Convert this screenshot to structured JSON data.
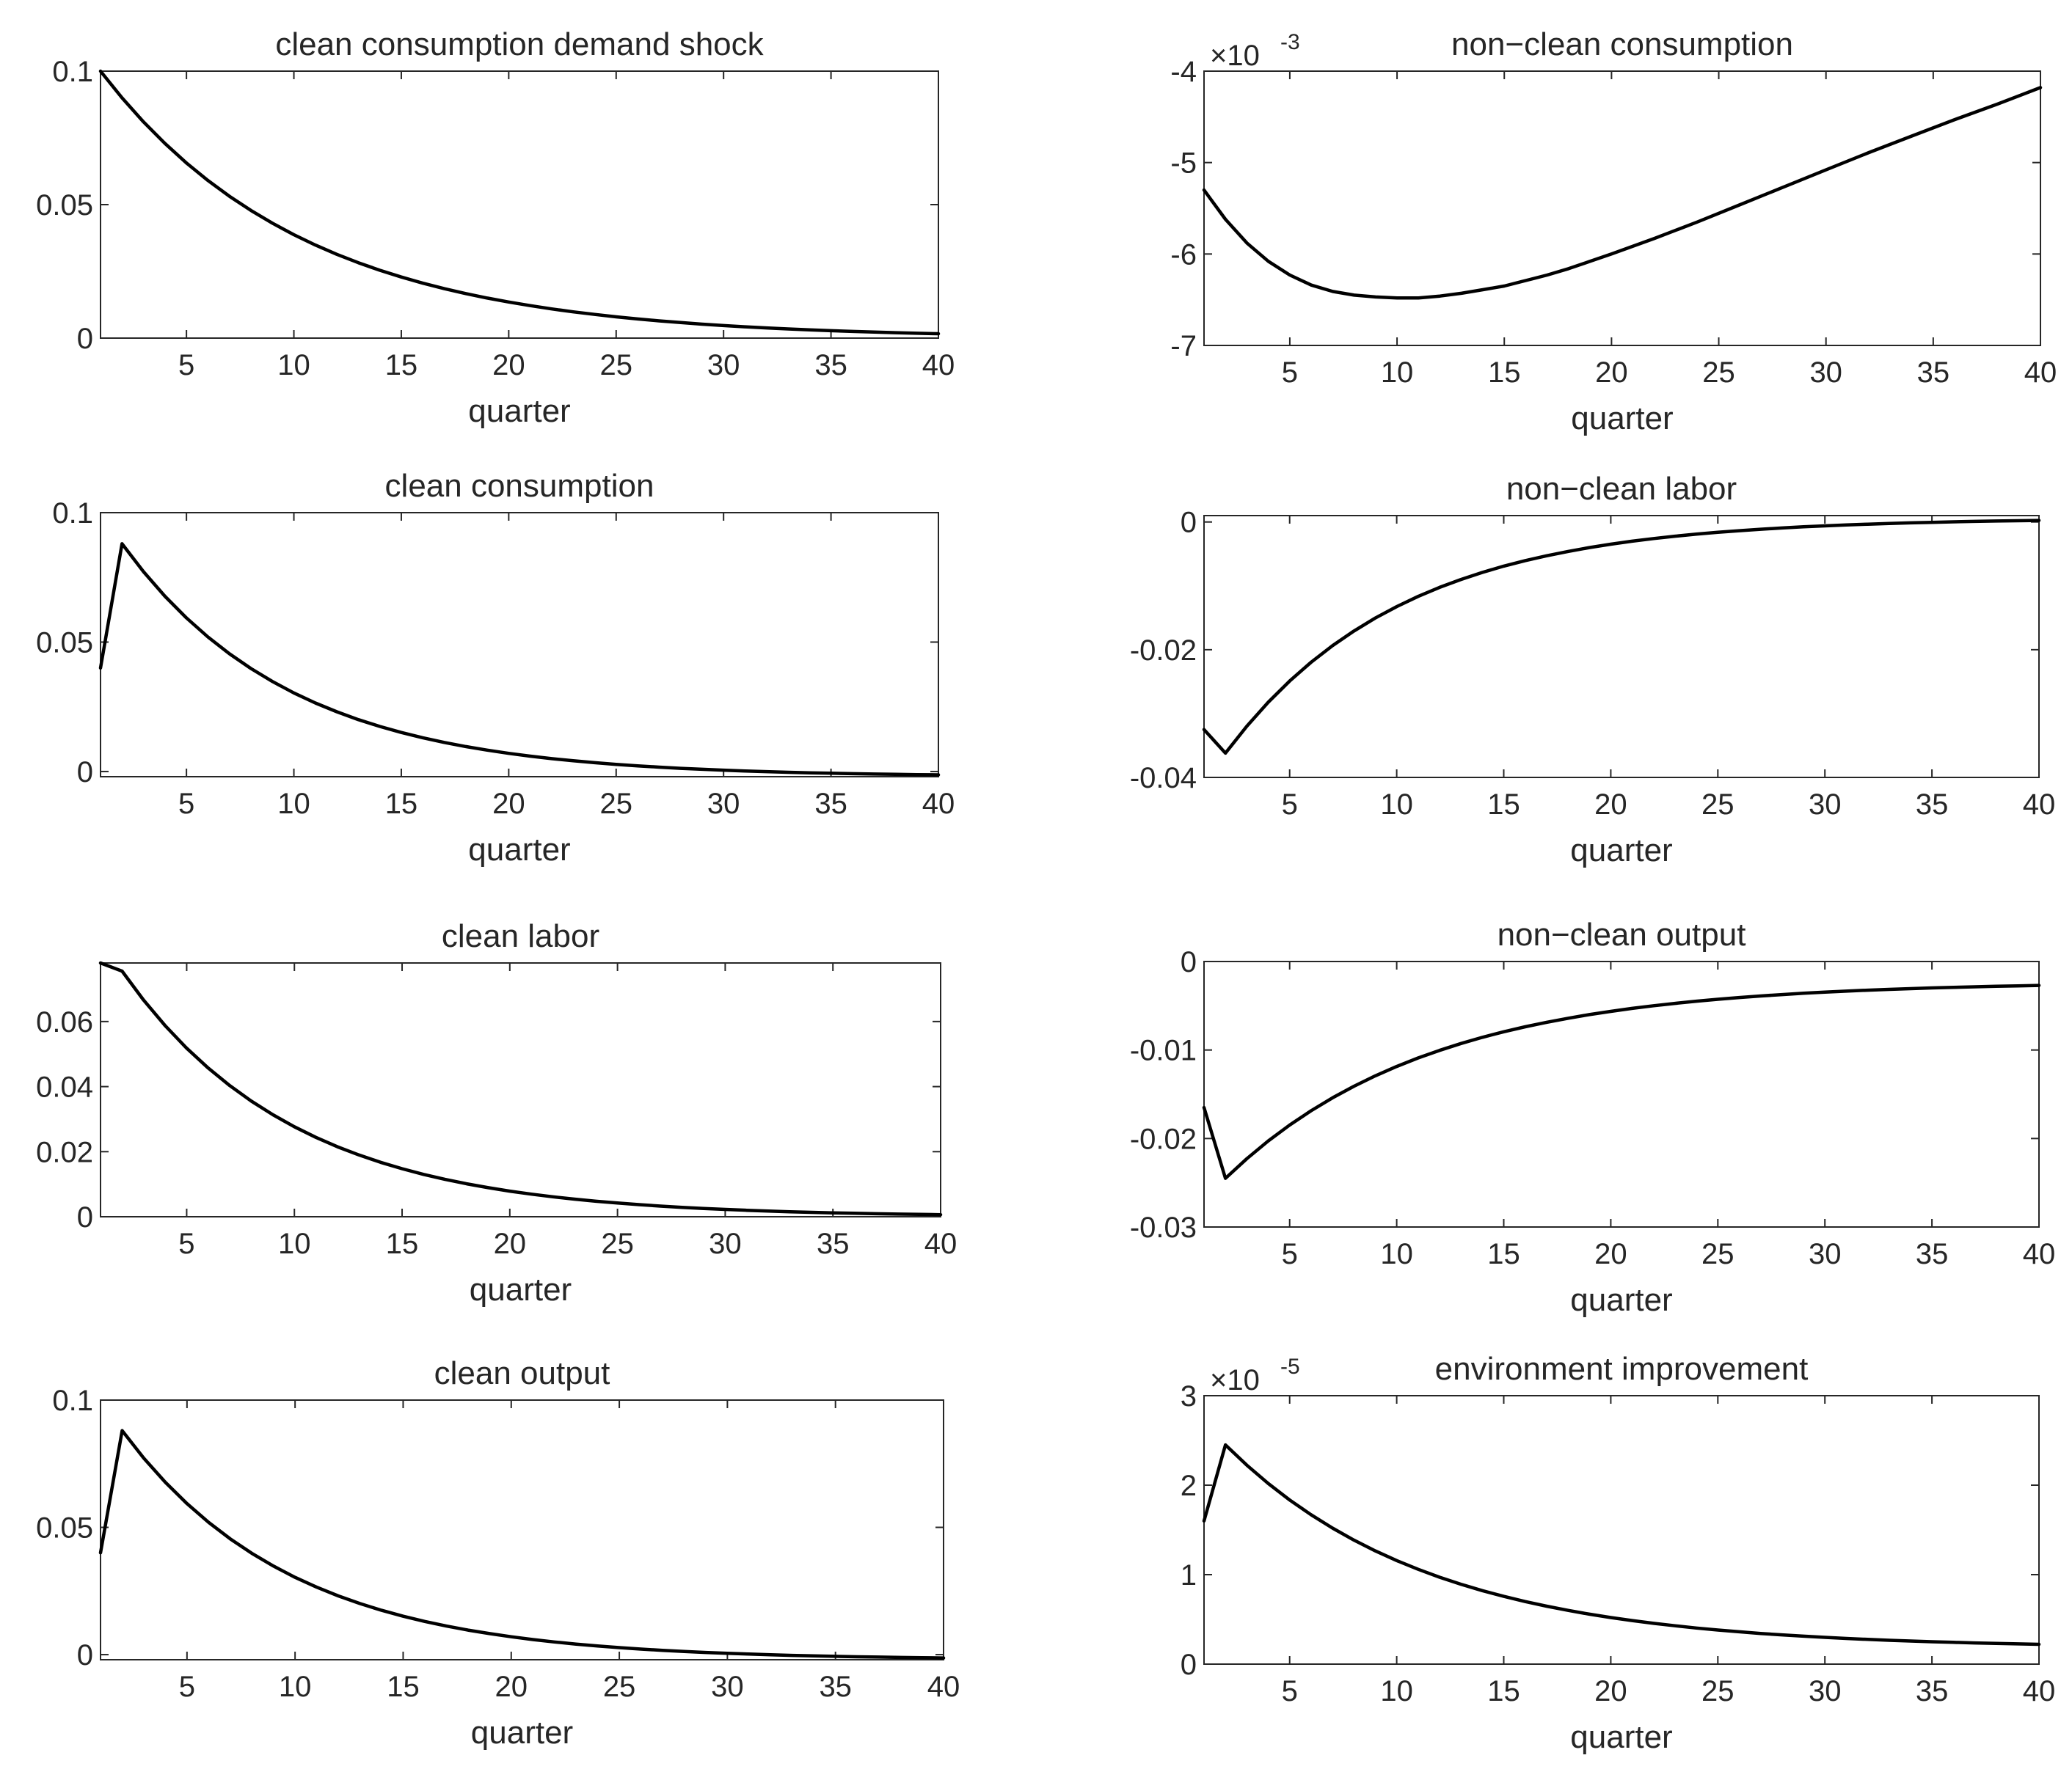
{
  "figure": {
    "title": "",
    "layout": "4 rows x 2 columns of impulse response panels"
  },
  "chart_data": [
    {
      "id": "p1",
      "type": "line",
      "title": "clean consumption demand shock",
      "xlabel": "quarter",
      "ylabel": "",
      "xlim": [
        1,
        40
      ],
      "ylim": [
        0,
        0.1
      ],
      "xticks": [
        5,
        10,
        15,
        20,
        25,
        30,
        35,
        40
      ],
      "yticks": [
        0,
        0.05,
        0.1
      ],
      "ytick_labels": [
        "0",
        "0.05",
        "0.1"
      ],
      "exponent_label": null,
      "series": [
        {
          "name": "clean consumption demand shock",
          "model": {
            "kind": "decay",
            "a": 0.1,
            "b": 0,
            "r": 0.9,
            "start": 1
          }
        }
      ]
    },
    {
      "id": "p2",
      "type": "line",
      "title": "non−clean consumption",
      "xlabel": "quarter",
      "ylabel": "",
      "xlim": [
        1,
        40
      ],
      "ylim": [
        -7,
        -4
      ],
      "xticks": [
        5,
        10,
        15,
        20,
        25,
        30,
        35,
        40
      ],
      "yticks": [
        -7,
        -6,
        -5,
        -4
      ],
      "ytick_labels": [
        "-7",
        "-6",
        "-5",
        "-4"
      ],
      "exponent_label": {
        "base": "×10",
        "power": "-3"
      },
      "series": [
        {
          "name": "non−clean consumption",
          "points": [
            [
              1,
              -5.3
            ],
            [
              2,
              -5.62
            ],
            [
              3,
              -5.88
            ],
            [
              4,
              -6.08
            ],
            [
              5,
              -6.23
            ],
            [
              6,
              -6.34
            ],
            [
              7,
              -6.41
            ],
            [
              8,
              -6.45
            ],
            [
              9,
              -6.47
            ],
            [
              10,
              -6.48
            ],
            [
              11,
              -6.48
            ],
            [
              12,
              -6.46
            ],
            [
              13,
              -6.43
            ],
            [
              14,
              -6.39
            ],
            [
              15,
              -6.35
            ],
            [
              16,
              -6.29
            ],
            [
              17,
              -6.23
            ],
            [
              18,
              -6.16
            ],
            [
              19,
              -6.08
            ],
            [
              20,
              -6.0
            ],
            [
              22,
              -5.83
            ],
            [
              24,
              -5.65
            ],
            [
              26,
              -5.46
            ],
            [
              28,
              -5.27
            ],
            [
              30,
              -5.08
            ],
            [
              32,
              -4.89
            ],
            [
              34,
              -4.71
            ],
            [
              36,
              -4.53
            ],
            [
              38,
              -4.36
            ],
            [
              40,
              -4.18
            ]
          ]
        }
      ]
    },
    {
      "id": "p3",
      "type": "line",
      "title": "clean consumption",
      "xlabel": "quarter",
      "ylabel": "",
      "xlim": [
        1,
        40
      ],
      "ylim": [
        -0.002,
        0.1
      ],
      "xticks": [
        5,
        10,
        15,
        20,
        25,
        30,
        35,
        40
      ],
      "yticks": [
        0,
        0.05,
        0.1
      ],
      "ytick_labels": [
        "0",
        "0.05",
        "0.1"
      ],
      "exponent_label": null,
      "series": [
        {
          "name": "clean consumption",
          "model": {
            "kind": "jump-decay",
            "y1": 0.04,
            "a": 0.088,
            "b": -0.002,
            "r": 0.88,
            "start": 2
          }
        }
      ]
    },
    {
      "id": "p4",
      "type": "line",
      "title": "non−clean labor",
      "xlabel": "quarter",
      "ylabel": "",
      "xlim": [
        1,
        40
      ],
      "ylim": [
        -0.04,
        0.001
      ],
      "xticks": [
        5,
        10,
        15,
        20,
        25,
        30,
        35,
        40
      ],
      "yticks": [
        -0.04,
        -0.02,
        0
      ],
      "ytick_labels": [
        "-0.04",
        "-0.02",
        "0"
      ],
      "exponent_label": null,
      "series": [
        {
          "name": "non−clean labor",
          "model": {
            "kind": "jump-decay",
            "y1": -0.0325,
            "a": -0.0362,
            "b": 0.0006,
            "r": 0.885,
            "start": 2
          }
        }
      ]
    },
    {
      "id": "p5",
      "type": "line",
      "title": "clean labor",
      "xlabel": "quarter",
      "ylabel": "",
      "xlim": [
        1,
        40
      ],
      "ylim": [
        0,
        0.078
      ],
      "xticks": [
        5,
        10,
        15,
        20,
        25,
        30,
        35,
        40
      ],
      "yticks": [
        0,
        0.02,
        0.04,
        0.06
      ],
      "ytick_labels": [
        "0",
        "0.02",
        "0.04",
        "0.06"
      ],
      "exponent_label": null,
      "series": [
        {
          "name": "clean labor",
          "model": {
            "kind": "jump-decay",
            "y1": 0.078,
            "a": 0.0755,
            "b": 0,
            "r": 0.882,
            "start": 2
          }
        }
      ]
    },
    {
      "id": "p6",
      "type": "line",
      "title": "non−clean output",
      "xlabel": "quarter",
      "ylabel": "",
      "xlim": [
        1,
        40
      ],
      "ylim": [
        -0.03,
        0
      ],
      "xticks": [
        5,
        10,
        15,
        20,
        25,
        30,
        35,
        40
      ],
      "yticks": [
        -0.03,
        -0.02,
        -0.01,
        0
      ],
      "ytick_labels": [
        "-0.03",
        "-0.02",
        "-0.01",
        "0"
      ],
      "exponent_label": null,
      "series": [
        {
          "name": "non−clean output",
          "model": {
            "kind": "jump-decay",
            "y1": -0.0165,
            "a": -0.0245,
            "b": -0.0023,
            "r": 0.9,
            "start": 2
          }
        }
      ]
    },
    {
      "id": "p7",
      "type": "line",
      "title": "clean output",
      "xlabel": "quarter",
      "ylabel": "",
      "xlim": [
        1,
        40
      ],
      "ylim": [
        -0.002,
        0.1
      ],
      "xticks": [
        5,
        10,
        15,
        20,
        25,
        30,
        35,
        40
      ],
      "yticks": [
        0,
        0.05,
        0.1
      ],
      "ytick_labels": [
        "0",
        "0.05",
        "0.1"
      ],
      "exponent_label": null,
      "series": [
        {
          "name": "clean output",
          "model": {
            "kind": "jump-decay",
            "y1": 0.04,
            "a": 0.088,
            "b": -0.002,
            "r": 0.88,
            "start": 2
          }
        }
      ]
    },
    {
      "id": "p8",
      "type": "line",
      "title": "environment improvement",
      "xlabel": "quarter",
      "ylabel": "",
      "xlim": [
        1,
        40
      ],
      "ylim": [
        0,
        3
      ],
      "xticks": [
        5,
        10,
        15,
        20,
        25,
        30,
        35,
        40
      ],
      "yticks": [
        0,
        1,
        2,
        3
      ],
      "ytick_labels": [
        "0",
        "1",
        "2",
        "3"
      ],
      "exponent_label": {
        "base": "×10",
        "power": "-5"
      },
      "series": [
        {
          "name": "environment improvement",
          "model": {
            "kind": "jump-decay",
            "y1": 1.6,
            "a": 2.45,
            "b": 0.18,
            "r": 0.9,
            "start": 2
          }
        }
      ]
    }
  ]
}
